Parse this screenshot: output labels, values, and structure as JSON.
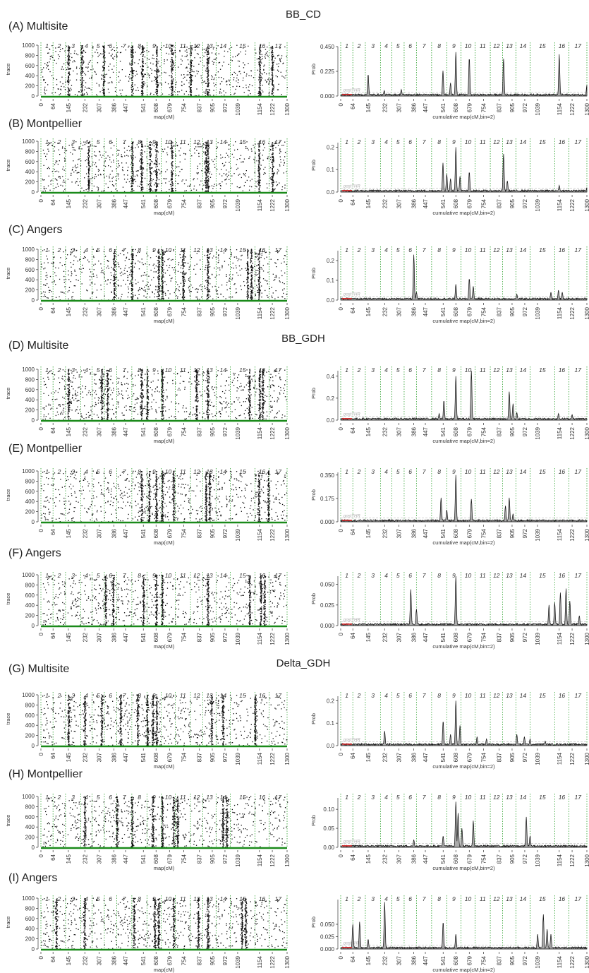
{
  "figure": {
    "groups": [
      "BB_CD",
      "BB_GDH",
      "Delta_GDH"
    ]
  },
  "chart_data": {
    "type": "scatter",
    "trace_panel": {
      "ylabel": "trace",
      "xlabel": "map(cM)",
      "yticks": [
        0,
        200,
        400,
        600,
        800,
        1000
      ],
      "ylim": [
        0,
        1000
      ]
    },
    "prob_panel": {
      "ylabel": "Prob",
      "xlabel": "cumulative map(cM,bin=2)",
      "threshold_label": "postTHR"
    },
    "x_ticks": [
      "0",
      "64",
      "145",
      "232",
      "307",
      "386",
      "447",
      "541",
      "608",
      "679",
      "754",
      "837",
      "905",
      "972",
      "1039",
      "1154",
      "1222",
      "1300"
    ],
    "chromosomes": [
      "1",
      "2",
      "3",
      "4",
      "5",
      "6",
      "7",
      "8",
      "9",
      "10",
      "11",
      "12",
      "13",
      "14",
      "15",
      "16",
      "17"
    ],
    "chromosome_boundaries_cM": [
      0,
      64,
      130,
      210,
      270,
      335,
      400,
      480,
      560,
      635,
      710,
      790,
      855,
      925,
      1000,
      1130,
      1205,
      1300
    ],
    "xlim": [
      0,
      1300
    ],
    "rows": [
      {
        "label": "(A) Multisite",
        "group": "BB_CD",
        "prob_ticks": [
          "0.000",
          "0.225",
          "0.450"
        ],
        "prob_max": 0.45,
        "peaks": [
          [
            145,
            0.2
          ],
          [
            230,
            0.05
          ],
          [
            320,
            0.06
          ],
          [
            540,
            0.23
          ],
          [
            580,
            0.12
          ],
          [
            608,
            0.4
          ],
          [
            679,
            0.35
          ],
          [
            860,
            0.34
          ],
          [
            1154,
            0.38
          ],
          [
            1300,
            0.1
          ]
        ],
        "dense_cM": [
          145,
          215,
          330,
          480,
          535,
          610,
          690,
          790,
          880,
          1154,
          1220
        ]
      },
      {
        "label": "(B) Montpellier",
        "group": "BB_CD",
        "prob_ticks": [
          "0.0",
          "0.1",
          "0.2"
        ],
        "prob_max": 0.22,
        "peaks": [
          [
            540,
            0.13
          ],
          [
            560,
            0.08
          ],
          [
            580,
            0.06
          ],
          [
            608,
            0.2
          ],
          [
            630,
            0.07
          ],
          [
            679,
            0.09
          ],
          [
            860,
            0.17
          ],
          [
            880,
            0.05
          ],
          [
            1154,
            0.03
          ],
          [
            1300,
            0.02
          ]
        ],
        "dense_cM": [
          250,
          480,
          530,
          575,
          608,
          690,
          870,
          880,
          1150,
          1222
        ]
      },
      {
        "label": "(C) Angers",
        "group": "BB_CD",
        "prob_ticks": [
          "0.0",
          "0.1",
          "0.2"
        ],
        "prob_max": 0.25,
        "peaks": [
          [
            386,
            0.23
          ],
          [
            400,
            0.04
          ],
          [
            608,
            0.08
          ],
          [
            679,
            0.11
          ],
          [
            700,
            0.07
          ],
          [
            930,
            0.03
          ],
          [
            1110,
            0.04
          ],
          [
            1150,
            0.05
          ],
          [
            1170,
            0.04
          ]
        ],
        "dense_cM": [
          386,
          480,
          620,
          640,
          750,
          880,
          1090,
          1110,
          1150
        ]
      },
      {
        "label": "(D) Multisite",
        "group": "BB_GDH",
        "prob_ticks": [
          "0.0",
          "0.2",
          "0.4"
        ],
        "prob_max": 0.45,
        "peaks": [
          [
            520,
            0.06
          ],
          [
            545,
            0.18
          ],
          [
            608,
            0.4
          ],
          [
            690,
            0.45
          ],
          [
            890,
            0.26
          ],
          [
            910,
            0.15
          ],
          [
            930,
            0.07
          ],
          [
            1150,
            0.06
          ],
          [
            1222,
            0.05
          ]
        ],
        "dense_cM": [
          145,
          320,
          350,
          530,
          560,
          640,
          820,
          880,
          1100,
          1154,
          1170
        ]
      },
      {
        "label": "(E) Montpellier",
        "group": "BB_GDH",
        "prob_ticks": [
          "0.000",
          "0.175",
          "0.350"
        ],
        "prob_max": 0.37,
        "peaks": [
          [
            530,
            0.18
          ],
          [
            560,
            0.09
          ],
          [
            608,
            0.35
          ],
          [
            690,
            0.17
          ],
          [
            870,
            0.12
          ],
          [
            890,
            0.18
          ],
          [
            910,
            0.06
          ]
        ],
        "dense_cM": [
          530,
          570,
          608,
          640,
          700,
          870,
          890,
          1150,
          1200
        ]
      },
      {
        "label": "(F) Angers",
        "group": "BB_GDH",
        "prob_ticks": [
          "0.000",
          "0.025",
          "0.050"
        ],
        "prob_max": 0.06,
        "peaks": [
          [
            370,
            0.044
          ],
          [
            400,
            0.02
          ],
          [
            608,
            0.06
          ],
          [
            1100,
            0.025
          ],
          [
            1130,
            0.028
          ],
          [
            1160,
            0.04
          ],
          [
            1190,
            0.045
          ],
          [
            1210,
            0.03
          ],
          [
            1260,
            0.012
          ]
        ],
        "dense_cM": [
          340,
          380,
          540,
          608,
          640,
          880,
          1100,
          1160,
          1180
        ]
      },
      {
        "label": "(G) Multisite",
        "group": "Delta_GDH",
        "prob_ticks": [
          "0.0",
          "0.1",
          "0.2"
        ],
        "prob_max": 0.22,
        "peaks": [
          [
            232,
            0.065
          ],
          [
            541,
            0.11
          ],
          [
            580,
            0.05
          ],
          [
            608,
            0.2
          ],
          [
            630,
            0.09
          ],
          [
            720,
            0.04
          ],
          [
            770,
            0.03
          ],
          [
            930,
            0.05
          ],
          [
            970,
            0.04
          ],
          [
            1000,
            0.03
          ],
          [
            1080,
            0.02
          ]
        ],
        "dense_cM": [
          145,
          230,
          320,
          420,
          510,
          560,
          590,
          610,
          900,
          960,
          1130
        ]
      },
      {
        "label": "(H) Montpellier",
        "group": "Delta_GDH",
        "prob_ticks": [
          "0.00",
          "0.05",
          "0.10"
        ],
        "prob_max": 0.13,
        "peaks": [
          [
            386,
            0.02
          ],
          [
            541,
            0.03
          ],
          [
            608,
            0.12
          ],
          [
            620,
            0.09
          ],
          [
            640,
            0.05
          ],
          [
            700,
            0.07
          ],
          [
            980,
            0.08
          ],
          [
            1000,
            0.03
          ]
        ],
        "dense_cM": [
          230,
          400,
          480,
          590,
          640,
          700,
          720,
          960,
          980
        ]
      },
      {
        "label": "(I) Angers",
        "group": "Delta_GDH",
        "prob_ticks": [
          "0.000",
          "0.025",
          "0.050"
        ],
        "prob_max": 0.1,
        "peaks": [
          [
            64,
            0.05
          ],
          [
            100,
            0.055
          ],
          [
            145,
            0.02
          ],
          [
            232,
            0.095
          ],
          [
            541,
            0.055
          ],
          [
            608,
            0.03
          ],
          [
            1040,
            0.03
          ],
          [
            1070,
            0.07
          ],
          [
            1090,
            0.04
          ],
          [
            1110,
            0.03
          ]
        ],
        "dense_cM": [
          80,
          230,
          490,
          600,
          620,
          700,
          830,
          880,
          1060,
          1080
        ]
      }
    ]
  }
}
